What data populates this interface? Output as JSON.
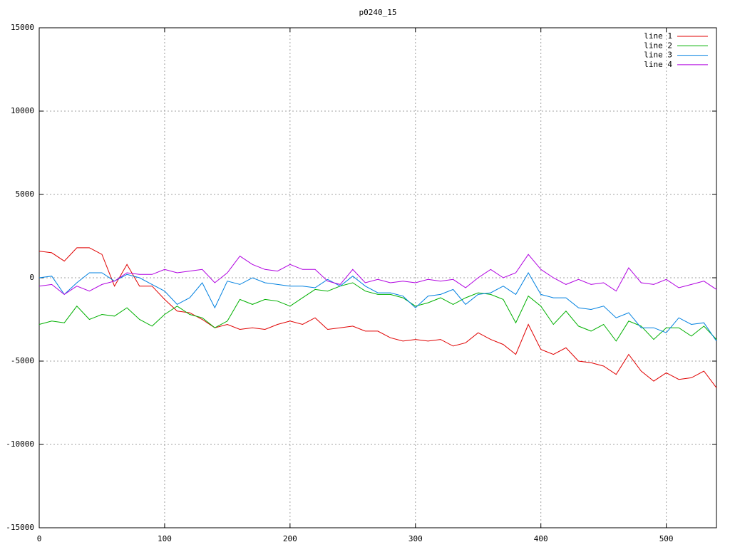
{
  "chart_data": {
    "type": "line",
    "title": "p0240_15",
    "x": [
      0,
      10,
      20,
      30,
      40,
      50,
      60,
      70,
      80,
      90,
      100,
      110,
      120,
      130,
      140,
      150,
      160,
      170,
      180,
      190,
      200,
      210,
      220,
      230,
      240,
      250,
      260,
      270,
      280,
      290,
      300,
      310,
      320,
      330,
      340,
      350,
      360,
      370,
      380,
      390,
      400,
      410,
      420,
      430,
      440,
      450,
      460,
      470,
      480,
      490,
      500,
      510,
      520,
      530,
      540
    ],
    "series": [
      {
        "name": "line 1",
        "color": "#e00000",
        "values": [
          1600,
          1500,
          1000,
          1800,
          1800,
          1400,
          -500,
          800,
          -500,
          -500,
          -1300,
          -2000,
          -2100,
          -2500,
          -3000,
          -2800,
          -3100,
          -3000,
          -3100,
          -2800,
          -2600,
          -2800,
          -2400,
          -3100,
          -3000,
          -2900,
          -3200,
          -3200,
          -3600,
          -3800,
          -3700,
          -3800,
          -3700,
          -4100,
          -3900,
          -3300,
          -3700,
          -4000,
          -4600,
          -2800,
          -4300,
          -4600,
          -4200,
          -5000,
          -5100,
          -5300,
          -5800,
          -4600,
          -5600,
          -6200,
          -5700,
          -6100,
          -6000,
          -5600,
          -6600
        ]
      },
      {
        "name": "line 2",
        "color": "#00b000",
        "values": [
          -2800,
          -2600,
          -2700,
          -1700,
          -2500,
          -2200,
          -2300,
          -1800,
          -2500,
          -2900,
          -2200,
          -1700,
          -2200,
          -2400,
          -3000,
          -2600,
          -1300,
          -1600,
          -1300,
          -1400,
          -1700,
          -1200,
          -700,
          -800,
          -500,
          -300,
          -800,
          -1000,
          -1000,
          -1200,
          -1700,
          -1500,
          -1200,
          -1600,
          -1200,
          -900,
          -1000,
          -1300,
          -2700,
          -1100,
          -1700,
          -2800,
          -2000,
          -2900,
          -3200,
          -2800,
          -3800,
          -2600,
          -2900,
          -3700,
          -3000,
          -3000,
          -3500,
          -2900,
          -3700
        ]
      },
      {
        "name": "line 3",
        "color": "#0080e0",
        "values": [
          0,
          100,
          -1000,
          -300,
          300,
          300,
          -200,
          200,
          0,
          -400,
          -800,
          -1600,
          -1200,
          -300,
          -1800,
          -200,
          -400,
          0,
          -300,
          -400,
          -500,
          -500,
          -600,
          -100,
          -500,
          100,
          -500,
          -900,
          -900,
          -1100,
          -1800,
          -1100,
          -1000,
          -700,
          -1600,
          -1000,
          -900,
          -500,
          -1000,
          300,
          -1000,
          -1200,
          -1200,
          -1800,
          -1900,
          -1700,
          -2400,
          -2100,
          -3000,
          -3000,
          -3300,
          -2400,
          -2800,
          -2700,
          -3800
        ]
      },
      {
        "name": "line 4",
        "color": "#b000e0",
        "values": [
          -500,
          -400,
          -1000,
          -500,
          -800,
          -400,
          -200,
          300,
          200,
          200,
          500,
          300,
          400,
          500,
          -300,
          300,
          1300,
          800,
          500,
          400,
          800,
          500,
          500,
          -200,
          -400,
          500,
          -300,
          -100,
          -300,
          -200,
          -300,
          -100,
          -200,
          -100,
          -600,
          0,
          500,
          0,
          300,
          1400,
          500,
          0,
          -400,
          -100,
          -400,
          -300,
          -800,
          600,
          -300,
          -400,
          -100,
          -600,
          -400,
          -200,
          -700
        ]
      }
    ],
    "xlim": [
      0,
      540
    ],
    "xticks": [
      0,
      100,
      200,
      300,
      400,
      500
    ],
    "ylim": [
      -15000,
      15000
    ],
    "yticks": [
      -15000,
      -10000,
      -5000,
      0,
      5000,
      10000,
      15000
    ],
    "grid": true,
    "legend": "upper right"
  }
}
